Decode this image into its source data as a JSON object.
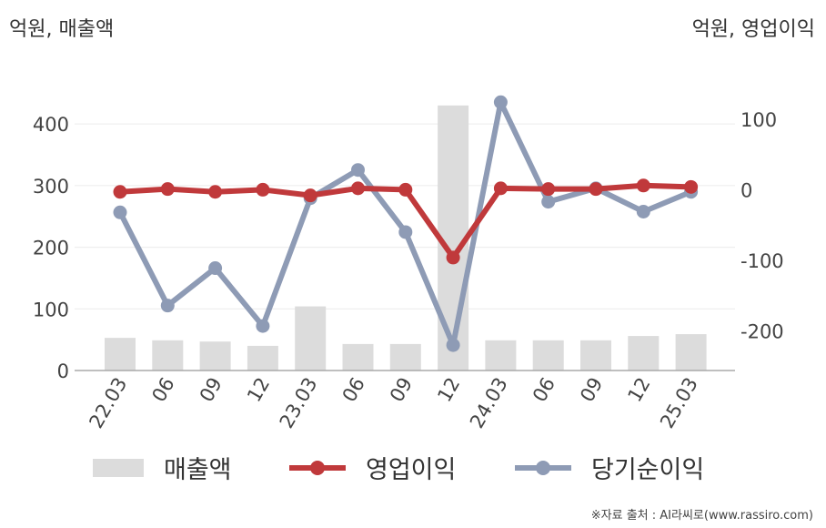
{
  "units": {
    "left": "억원, 매출액",
    "right": "억원, 영업이익"
  },
  "source": "※자료 출처 : AI라씨로(www.rassiro.com)",
  "chart_data": {
    "type": "bar+line",
    "categories": [
      "22.03",
      "06",
      "09",
      "12",
      "23.03",
      "06",
      "09",
      "12",
      "24.03",
      "06",
      "09",
      "12",
      "25.03"
    ],
    "left_axis": {
      "ticks": [
        0,
        100,
        200,
        300,
        400
      ],
      "range": [
        0,
        480
      ]
    },
    "right_axis": {
      "ticks": [
        -200,
        -100,
        0,
        100
      ],
      "range": [
        -256,
        163
      ]
    },
    "series": [
      {
        "name": "매출액",
        "kind": "bar",
        "axis": "left",
        "color": "#dcdcdc",
        "values": [
          53,
          49,
          47,
          40,
          104,
          43,
          43,
          430,
          49,
          49,
          49,
          56,
          59
        ]
      },
      {
        "name": "영업이익",
        "kind": "line",
        "axis": "right",
        "color": "#c0393b",
        "values": [
          -3,
          1,
          -3,
          0,
          -8,
          2,
          0,
          -96,
          2,
          1,
          1,
          6,
          4
        ]
      },
      {
        "name": "당기순이익",
        "kind": "line",
        "axis": "right",
        "color": "#8e9bb5",
        "values": [
          -32,
          -164,
          -111,
          -193,
          -12,
          28,
          -60,
          -220,
          124,
          -17,
          2,
          -31,
          -3
        ]
      }
    ],
    "grid": true,
    "legend": "bottom"
  }
}
